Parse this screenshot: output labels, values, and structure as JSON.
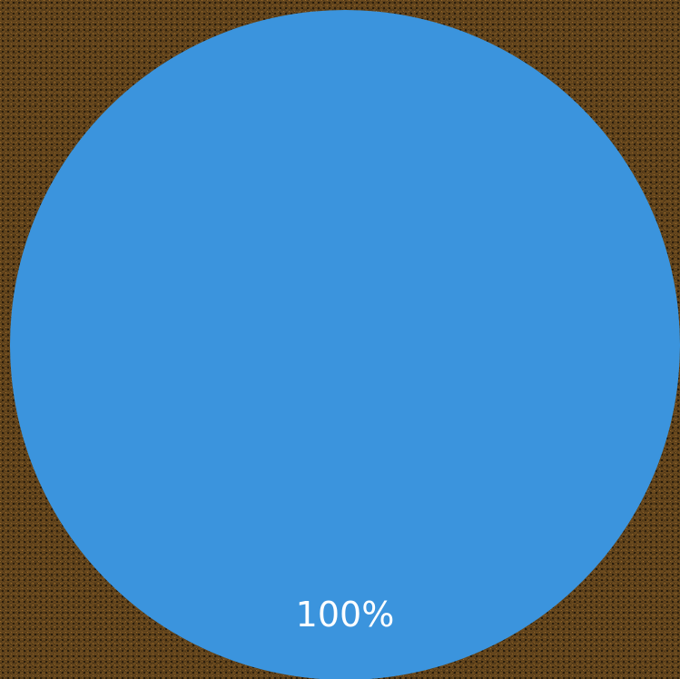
{
  "chart_data": {
    "type": "pie",
    "categories": [
      ""
    ],
    "values": [
      100
    ],
    "data_labels": [
      "100%"
    ],
    "colors": [
      "#3b94dd"
    ],
    "legend": "none",
    "grid": false
  }
}
